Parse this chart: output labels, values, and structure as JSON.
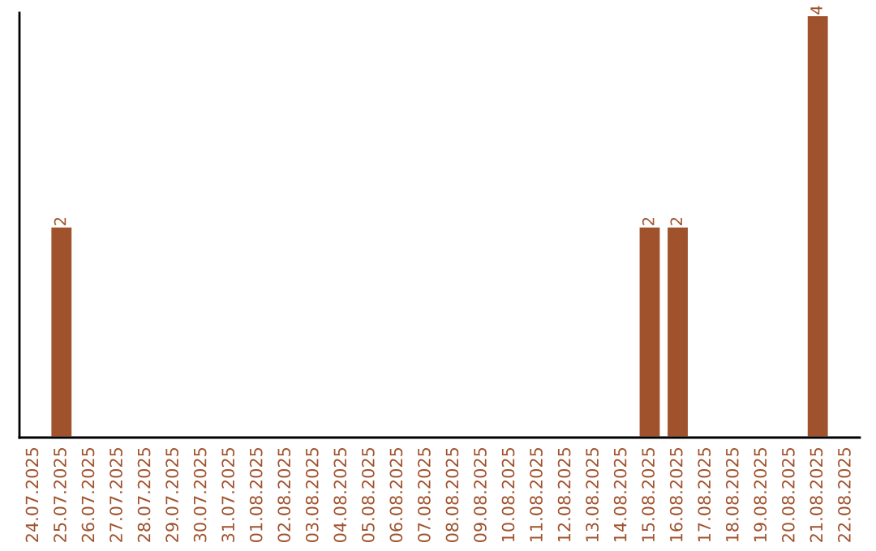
{
  "chart_data": {
    "type": "bar",
    "categories": [
      "24.07.2025",
      "25.07.2025",
      "26.07.2025",
      "27.07.2025",
      "28.07.2025",
      "29.07.2025",
      "30.07.2025",
      "31.07.2025",
      "01.08.2025",
      "02.08.2025",
      "03.08.2025",
      "04.08.2025",
      "05.08.2025",
      "06.08.2025",
      "07.08.2025",
      "08.08.2025",
      "09.08.2025",
      "10.08.2025",
      "11.08.2025",
      "12.08.2025",
      "13.08.2025",
      "14.08.2025",
      "15.08.2025",
      "16.08.2025",
      "17.08.2025",
      "18.08.2025",
      "19.08.2025",
      "20.08.2025",
      "21.08.2025",
      "22.08.2025"
    ],
    "values": [
      null,
      2,
      null,
      null,
      null,
      null,
      null,
      null,
      null,
      null,
      null,
      null,
      null,
      null,
      null,
      null,
      null,
      null,
      null,
      null,
      null,
      null,
      2,
      2,
      null,
      null,
      null,
      null,
      4,
      null
    ],
    "value_labels": [
      null,
      "2",
      null,
      null,
      null,
      null,
      null,
      null,
      null,
      null,
      null,
      null,
      null,
      null,
      null,
      null,
      null,
      null,
      null,
      null,
      null,
      null,
      "2",
      "2",
      null,
      null,
      null,
      null,
      "4",
      null
    ],
    "color": "#a0522d",
    "tick_labels": "x",
    "grid": false,
    "legend": false
  }
}
